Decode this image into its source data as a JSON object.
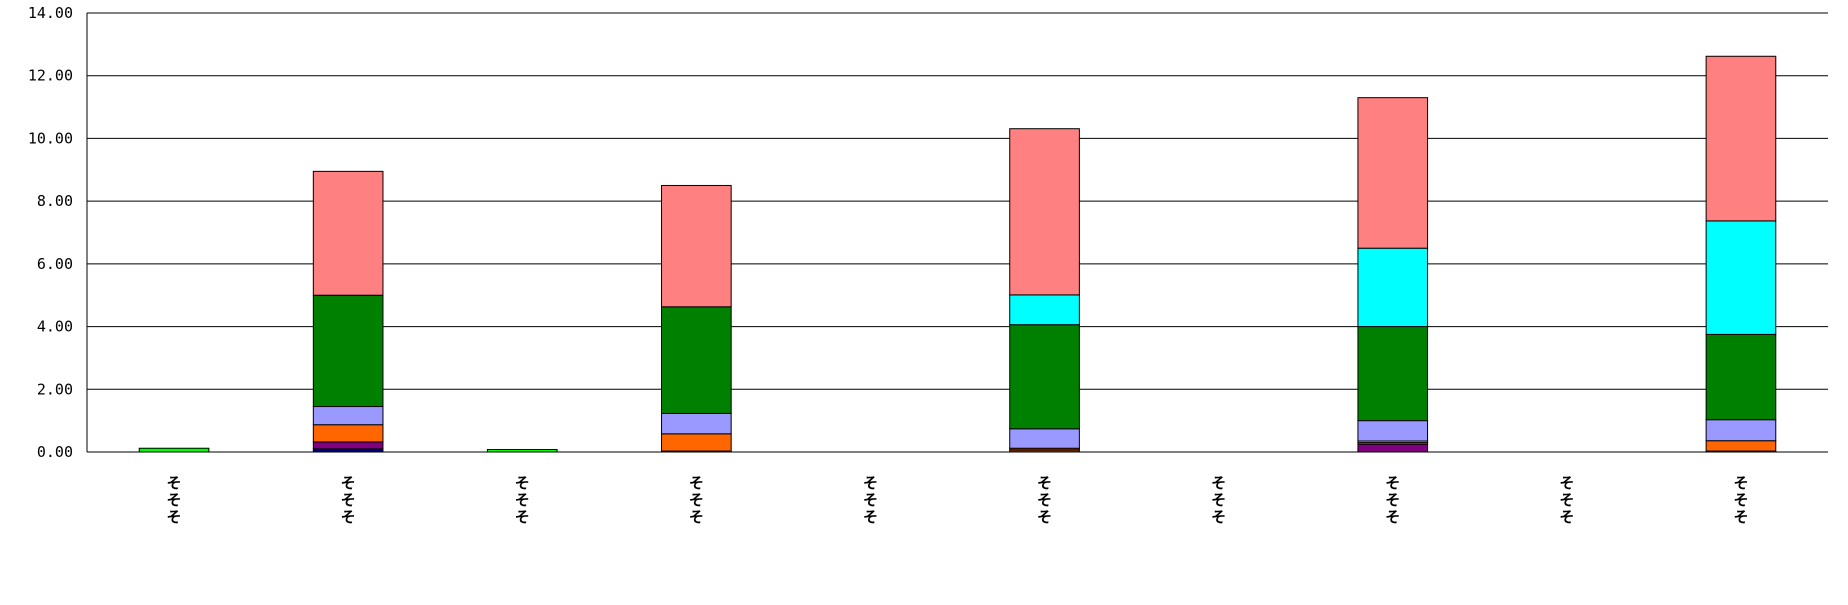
{
  "chart_data": {
    "type": "bar",
    "stacked": true,
    "title": "",
    "xlabel": "",
    "ylabel": "",
    "ylim": [
      0,
      14
    ],
    "yticks": [
      "0.00",
      "2.00",
      "4.00",
      "6.00",
      "8.00",
      "10.00",
      "12.00",
      "14.00"
    ],
    "grid": true,
    "legend": "none",
    "category_label_text": "そそそ",
    "categories": [
      "そそそ",
      "そそそ",
      "そそそ",
      "そそそ",
      "そそそ",
      "そそそ",
      "そそそ",
      "そそそ",
      "そそそ",
      "そそそ"
    ],
    "series": [
      {
        "color": "#000080",
        "values": [
          0,
          0.1,
          0,
          0,
          0,
          0,
          0,
          0,
          0,
          0
        ]
      },
      {
        "color": "#800080",
        "values": [
          0,
          0.22,
          0,
          0,
          0,
          0,
          0,
          0.25,
          0,
          0
        ]
      },
      {
        "color": "#993300",
        "values": [
          0,
          0,
          0,
          0.03,
          0,
          0.07,
          0,
          0,
          0,
          0.03
        ]
      },
      {
        "color": "#FF6600",
        "values": [
          0,
          0.55,
          0,
          0.55,
          0,
          0.05,
          0,
          0.05,
          0,
          0.33
        ]
      },
      {
        "color": "#FFCC00",
        "values": [
          0,
          0,
          0,
          0,
          0,
          0,
          0,
          0.05,
          0,
          0
        ]
      },
      {
        "color": "#9999FF",
        "values": [
          0,
          0.58,
          0,
          0.65,
          0,
          0.62,
          0,
          0.65,
          0,
          0.67
        ]
      },
      {
        "color": "#008000",
        "values": [
          0,
          3.55,
          0,
          3.4,
          0,
          3.32,
          0,
          3.0,
          0,
          2.72
        ]
      },
      {
        "color": "#00FF00",
        "values": [
          0.12,
          0,
          0.08,
          0,
          0,
          0,
          0,
          0,
          0,
          0
        ]
      },
      {
        "color": "#00FFFF",
        "values": [
          0,
          0,
          0,
          0,
          0,
          0.95,
          0,
          2.5,
          0,
          3.62
        ]
      },
      {
        "color": "#FF8080",
        "values": [
          0,
          3.95,
          0,
          3.87,
          0,
          5.3,
          0,
          4.8,
          0,
          5.25
        ]
      }
    ],
    "totals": [
      0.12,
      8.95,
      0.08,
      8.5,
      0,
      10.31,
      0,
      11.3,
      0,
      12.62
    ]
  }
}
